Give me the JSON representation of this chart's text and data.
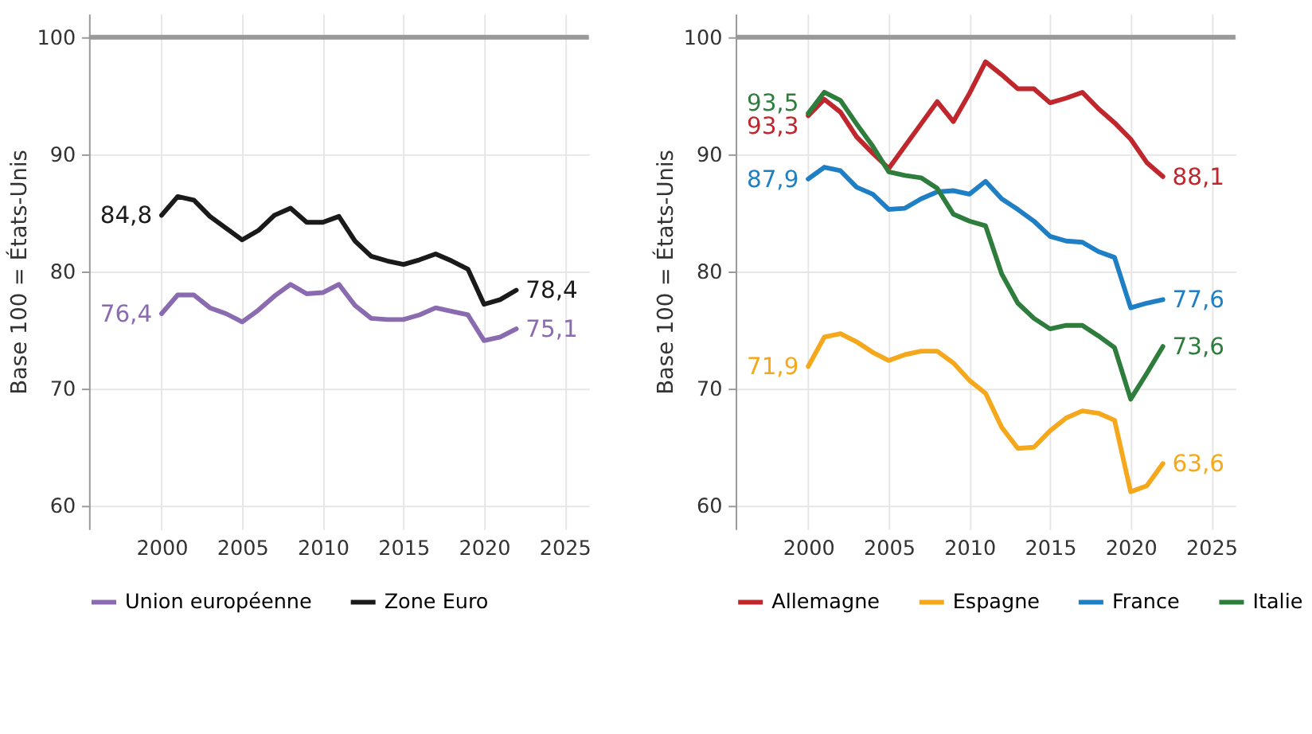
{
  "chart_data": [
    {
      "type": "line",
      "ylabel": "Base 100 = États-Unis",
      "xlim": [
        1995.5,
        2026.5
      ],
      "ylim": [
        58,
        102
      ],
      "xticks": [
        2000,
        2005,
        2010,
        2015,
        2020,
        2025
      ],
      "yticks": [
        60,
        70,
        80,
        90,
        100
      ],
      "grid": true,
      "legend": "bottom",
      "ref_lines": [
        {
          "axis": "y",
          "value": 100,
          "color": "#999999"
        }
      ],
      "x": [
        2000,
        2001,
        2002,
        2003,
        2004,
        2005,
        2006,
        2007,
        2008,
        2009,
        2010,
        2011,
        2012,
        2013,
        2014,
        2015,
        2016,
        2017,
        2018,
        2019,
        2020,
        2021,
        2022
      ],
      "series": [
        {
          "name": "Union européenne",
          "color": "#8a6bb0",
          "values": [
            76.4,
            78.0,
            78.0,
            76.9,
            76.4,
            75.7,
            76.7,
            77.9,
            78.9,
            78.1,
            78.2,
            78.9,
            77.1,
            76.0,
            75.9,
            75.9,
            76.3,
            76.9,
            76.6,
            76.3,
            74.1,
            74.4,
            75.1
          ],
          "value_labels": [
            "76,4",
            null,
            null,
            null,
            null,
            null,
            null,
            null,
            null,
            null,
            null,
            null,
            null,
            null,
            null,
            null,
            null,
            null,
            null,
            null,
            null,
            null,
            "75,1"
          ]
        },
        {
          "name": "Zone Euro",
          "color": "#1a1a1a",
          "values": [
            84.8,
            86.4,
            86.1,
            84.7,
            83.7,
            82.7,
            83.5,
            84.8,
            85.4,
            84.2,
            84.2,
            84.7,
            82.6,
            81.3,
            80.9,
            80.6,
            81.0,
            81.5,
            80.9,
            80.2,
            77.2,
            77.6,
            78.4
          ],
          "value_labels": [
            "84,8",
            null,
            null,
            null,
            null,
            null,
            null,
            null,
            null,
            null,
            null,
            null,
            null,
            null,
            null,
            null,
            null,
            null,
            null,
            null,
            null,
            null,
            "78,4"
          ]
        }
      ]
    },
    {
      "type": "line",
      "ylabel": "Base 100 = États-Unis",
      "xlim": [
        1995.5,
        2026.5
      ],
      "ylim": [
        58,
        102
      ],
      "xticks": [
        2000,
        2005,
        2010,
        2015,
        2020,
        2025
      ],
      "yticks": [
        60,
        70,
        80,
        90,
        100
      ],
      "grid": true,
      "legend": "bottom",
      "ref_lines": [
        {
          "axis": "y",
          "value": 100,
          "color": "#999999"
        }
      ],
      "x": [
        2000,
        2001,
        2002,
        2003,
        2004,
        2005,
        2006,
        2007,
        2008,
        2009,
        2010,
        2011,
        2012,
        2013,
        2014,
        2015,
        2016,
        2017,
        2018,
        2019,
        2020,
        2021,
        2022
      ],
      "series": [
        {
          "name": "Allemagne",
          "color": "#c0272d",
          "values": [
            93.3,
            94.7,
            93.6,
            91.5,
            90.1,
            88.8,
            90.7,
            92.6,
            94.5,
            92.8,
            95.2,
            97.9,
            96.8,
            95.6,
            95.6,
            94.4,
            94.8,
            95.3,
            93.9,
            92.7,
            91.3,
            89.3,
            88.1
          ],
          "value_labels": [
            "93,3",
            null,
            null,
            null,
            null,
            null,
            null,
            null,
            null,
            null,
            null,
            null,
            null,
            null,
            null,
            null,
            null,
            null,
            null,
            null,
            null,
            null,
            "88,1"
          ]
        },
        {
          "name": "Espagne",
          "color": "#f5a81c",
          "values": [
            71.9,
            74.4,
            74.7,
            74.0,
            73.1,
            72.4,
            72.9,
            73.2,
            73.2,
            72.2,
            70.7,
            69.6,
            66.7,
            64.9,
            65.0,
            66.4,
            67.5,
            68.1,
            67.9,
            67.3,
            61.2,
            61.7,
            63.6
          ],
          "value_labels": [
            "71,9",
            null,
            null,
            null,
            null,
            null,
            null,
            null,
            null,
            null,
            null,
            null,
            null,
            null,
            null,
            null,
            null,
            null,
            null,
            null,
            null,
            null,
            "63,6"
          ]
        },
        {
          "name": "France",
          "color": "#1f7fc4",
          "values": [
            87.9,
            88.9,
            88.6,
            87.2,
            86.6,
            85.3,
            85.4,
            86.2,
            86.8,
            86.9,
            86.6,
            87.7,
            86.2,
            85.3,
            84.3,
            83.0,
            82.6,
            82.5,
            81.7,
            81.2,
            76.9,
            77.3,
            77.6
          ],
          "value_labels": [
            "87,9",
            null,
            null,
            null,
            null,
            null,
            null,
            null,
            null,
            null,
            null,
            null,
            null,
            null,
            null,
            null,
            null,
            null,
            null,
            null,
            null,
            null,
            "77,6"
          ]
        },
        {
          "name": "Italie",
          "color": "#2e7d3c",
          "values": [
            93.5,
            95.3,
            94.6,
            92.6,
            90.7,
            88.5,
            88.2,
            88.0,
            87.1,
            84.9,
            84.3,
            83.9,
            79.8,
            77.3,
            76.0,
            75.1,
            75.4,
            75.4,
            74.5,
            73.5,
            69.1,
            71.3,
            73.6
          ],
          "value_labels": [
            "93,5",
            null,
            null,
            null,
            null,
            null,
            null,
            null,
            null,
            null,
            null,
            null,
            null,
            null,
            null,
            null,
            null,
            null,
            null,
            null,
            null,
            null,
            "73,6"
          ]
        }
      ]
    }
  ]
}
